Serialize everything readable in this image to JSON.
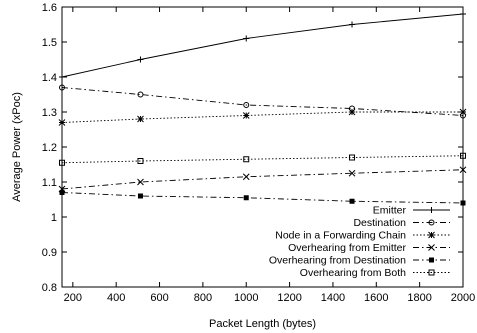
{
  "chart_data": {
    "type": "line",
    "title": "",
    "xlabel": "Packet Length (bytes)",
    "ylabel": "Average Power (xPoc)",
    "xlim": [
      150,
      2000
    ],
    "ylim": [
      0.8,
      1.6
    ],
    "xticks": [
      200,
      400,
      600,
      800,
      1000,
      1200,
      1400,
      1600,
      1800,
      2000
    ],
    "yticks": [
      0.8,
      0.9,
      1.0,
      1.1,
      1.2,
      1.3,
      1.4,
      1.5,
      1.6
    ],
    "xtick_labels": [
      "200",
      "400",
      "600",
      "800",
      "1000",
      "1200",
      "1400",
      "1600",
      "1800",
      "2000"
    ],
    "ytick_labels": [
      "0.8",
      "0.9",
      "1",
      "1.1",
      "1.2",
      "1.3",
      "1.4",
      "1.5",
      "1.6"
    ],
    "grid": false,
    "legend_position": "bottom-right",
    "series": [
      {
        "name": "Emitter",
        "marker": "plus",
        "dash": "solid",
        "x": [
          150,
          512,
          1000,
          1488,
          2000
        ],
        "y": [
          1.4,
          1.45,
          1.51,
          1.55,
          1.58
        ]
      },
      {
        "name": "Destination",
        "marker": "circle",
        "dash": "dashdot",
        "x": [
          150,
          512,
          1000,
          1488,
          2000
        ],
        "y": [
          1.37,
          1.35,
          1.32,
          1.31,
          1.29
        ]
      },
      {
        "name": "Node in a Forwarding Chain",
        "marker": "star",
        "dash": "dotted",
        "x": [
          150,
          512,
          1000,
          1488,
          2000
        ],
        "y": [
          1.27,
          1.28,
          1.29,
          1.3,
          1.3
        ]
      },
      {
        "name": "Overhearing from Emitter",
        "marker": "cross",
        "dash": "dashdot",
        "x": [
          150,
          512,
          1000,
          1488,
          2000
        ],
        "y": [
          1.08,
          1.1,
          1.115,
          1.125,
          1.135
        ]
      },
      {
        "name": "Overhearing from Destination",
        "marker": "filled-square",
        "dash": "dashdot",
        "x": [
          150,
          512,
          1000,
          1488,
          2000
        ],
        "y": [
          1.07,
          1.06,
          1.055,
          1.045,
          1.04
        ]
      },
      {
        "name": "Overhearing from Both",
        "marker": "open-square",
        "dash": "dotted",
        "x": [
          150,
          512,
          1000,
          1488,
          2000
        ],
        "y": [
          1.155,
          1.16,
          1.165,
          1.17,
          1.175
        ]
      }
    ]
  }
}
